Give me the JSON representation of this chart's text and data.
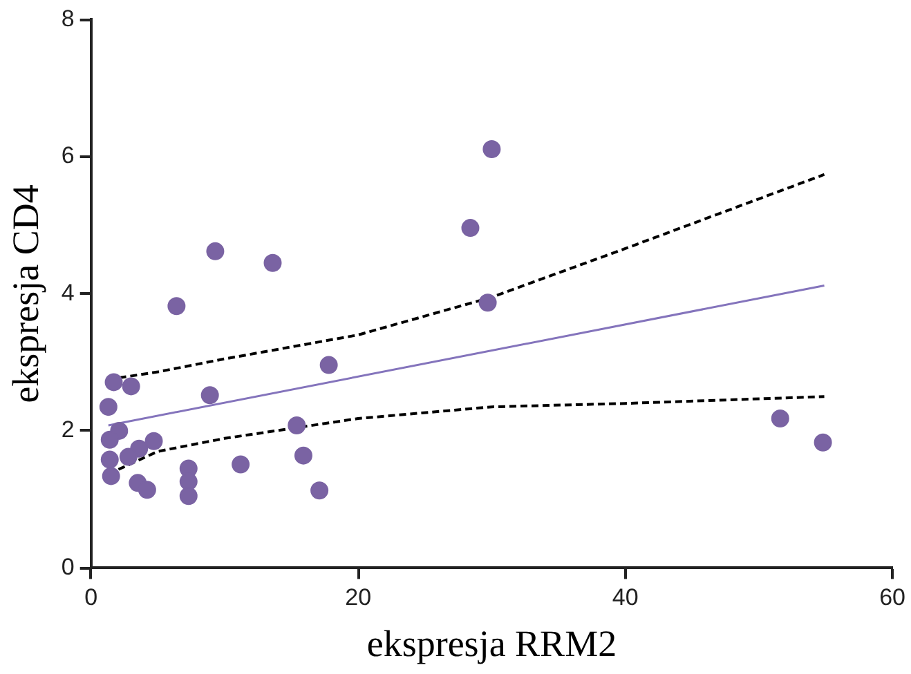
{
  "chart_data": {
    "type": "scatter",
    "xlabel": "ekspresja RRM2",
    "ylabel": "ekspresja CD4",
    "xlim": [
      0,
      60
    ],
    "ylim": [
      0,
      8
    ],
    "xticks": [
      0,
      20,
      40,
      60
    ],
    "yticks": [
      0,
      2,
      4,
      6,
      8
    ],
    "grid": false,
    "legend": false,
    "marker": "circle",
    "series": [
      {
        "color": "#7a63a3",
        "x": [
          1.7,
          3.0,
          1.3,
          2.1,
          1.4,
          4.7,
          3.6,
          2.8,
          1.4,
          1.5,
          3.5,
          4.2,
          7.3,
          7.3,
          7.3,
          11.2,
          8.9,
          6.4,
          9.3,
          13.6,
          17.8,
          15.4,
          15.9,
          17.1,
          30.0,
          28.4,
          29.7,
          51.6,
          54.8
        ],
        "values": [
          2.71,
          2.65,
          2.35,
          2.0,
          1.87,
          1.85,
          1.74,
          1.62,
          1.58,
          1.34,
          1.24,
          1.14,
          1.45,
          1.26,
          1.05,
          1.51,
          2.52,
          3.82,
          4.62,
          4.45,
          2.96,
          2.08,
          1.64,
          1.13,
          6.11,
          4.96,
          3.87,
          2.18,
          1.83
        ]
      },
      {
        "type": "line",
        "color": "#8474bc",
        "marker": "none",
        "line_style": "solid",
        "x": [
          1.3,
          54.9
        ],
        "values": [
          2.08,
          4.12
        ]
      },
      {
        "type": "line",
        "color": "#000000",
        "marker": "none",
        "line_style": "dashed",
        "x": [
          1.3,
          5,
          10,
          20,
          30,
          40,
          54.9
        ],
        "values": [
          2.75,
          2.86,
          3.05,
          3.4,
          3.95,
          4.66,
          5.74
        ]
      },
      {
        "type": "line",
        "color": "#000000",
        "marker": "none",
        "line_style": "dashed",
        "x": [
          1.3,
          5,
          10,
          20,
          30,
          40,
          54.9
        ],
        "values": [
          1.37,
          1.7,
          1.89,
          2.18,
          2.35,
          2.4,
          2.5
        ]
      }
    ]
  }
}
